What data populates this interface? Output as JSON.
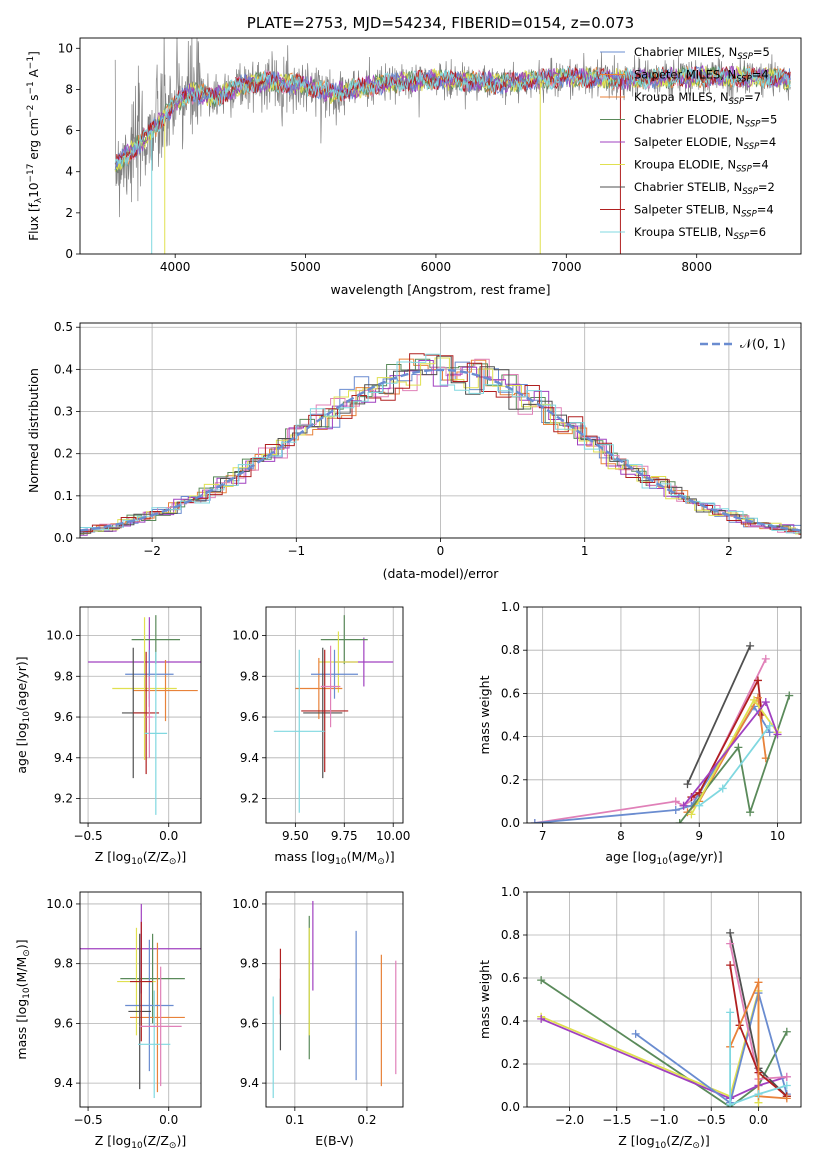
{
  "colors": {
    "c0": "#6A8CD0",
    "c1": "#E8823A",
    "c2": "#5A8A5A",
    "c3": "#E080B8",
    "c4": "#A040C0",
    "c5": "#E0E050",
    "c6": "#505050",
    "c7": "#B02020",
    "c8": "#80D8E0",
    "grid": "#b0b0b0",
    "spectrum": "#808080",
    "gauss": "#6A8CD0"
  },
  "chart_data": [
    {
      "id": "spectrum",
      "type": "line",
      "title": "PLATE=2753, MJD=54234, FIBERID=0154, z=0.073",
      "xlabel": "wavelength [Angstrom, rest frame]",
      "ylabel": "Flux [f",
      "ylabel_sub": "λ",
      "ylabel_rest": "10",
      "ylabel_sup": "−17",
      "ylabel_tail": " erg cm",
      "ylabel_sup2": "−2",
      "ylabel_tail2": " s",
      "ylabel_sup3": "−1",
      "ylabel_tail3": " A",
      "ylabel_sup4": "−1",
      "ylabel_end": "]",
      "xlim": [
        3270,
        8800
      ],
      "ylim": [
        0,
        10.5
      ],
      "xticks": [
        4000,
        5000,
        6000,
        7000,
        8000
      ],
      "yticks": [
        0,
        2,
        4,
        6,
        8,
        10
      ],
      "grid": false,
      "legend_position": "right",
      "legend": [
        {
          "label": "Chabrier MILES, N",
          "sub": "SSP",
          "tail": "=5",
          "color": "c0"
        },
        {
          "label": "Salpeter MILES, N",
          "sub": "SSP",
          "tail": "=4",
          "color": "c1"
        },
        {
          "label": "Kroupa MILES, N",
          "sub": "SSP",
          "tail": "=7",
          "color": "c1"
        },
        {
          "label": "Chabrier ELODIE, N",
          "sub": "SSP",
          "tail": "=5",
          "color": "c2"
        },
        {
          "label": "Salpeter ELODIE, N",
          "sub": "SSP",
          "tail": "=4",
          "color": "c4"
        },
        {
          "label": "Kroupa ELODIE, N",
          "sub": "SSP",
          "tail": "=4",
          "color": "c5"
        },
        {
          "label": "Chabrier STELIB, N",
          "sub": "SSP",
          "tail": "=2",
          "color": "c6"
        },
        {
          "label": "Salpeter STELIB, N",
          "sub": "SSP",
          "tail": "=4",
          "color": "c7"
        },
        {
          "label": "Kroupa STELIB, N",
          "sub": "SSP",
          "tail": "=6",
          "color": "c8"
        }
      ],
      "continuum_knots": [
        [
          3540,
          4.3
        ],
        [
          3700,
          5.2
        ],
        [
          3850,
          6.2
        ],
        [
          4000,
          7.3
        ],
        [
          4100,
          7.8
        ],
        [
          4200,
          7.8
        ],
        [
          4300,
          7.6
        ],
        [
          4500,
          8.2
        ],
        [
          4700,
          8.4
        ],
        [
          5000,
          8.2
        ],
        [
          5200,
          7.8
        ],
        [
          5500,
          8.2
        ],
        [
          6000,
          8.5
        ],
        [
          6300,
          8.4
        ],
        [
          6500,
          8.3
        ],
        [
          7000,
          8.6
        ],
        [
          7500,
          8.5
        ],
        [
          8000,
          8.6
        ],
        [
          8500,
          8.6
        ],
        [
          8700,
          8.5
        ]
      ],
      "dips": [
        {
          "x": 3820,
          "depth": 10.5,
          "color": "c8"
        },
        {
          "x": 3920,
          "depth": 10.5,
          "color": "c5"
        },
        {
          "x": 6800,
          "depth": 10.5,
          "color": "c5"
        },
        {
          "x": 7415,
          "depth": 10.5,
          "color": "c7"
        }
      ]
    },
    {
      "id": "residuals",
      "type": "histogram",
      "xlabel": "(data-model)/error",
      "ylabel": "Normed distribution",
      "xlim": [
        -2.5,
        2.5
      ],
      "ylim": [
        0,
        0.51
      ],
      "xticks": [
        -2,
        -1,
        0,
        1,
        2
      ],
      "yticks": [
        0.0,
        0.1,
        0.2,
        0.3,
        0.4,
        0.5
      ],
      "grid": true,
      "legend_position": "top-right",
      "legend": [
        {
          "label": "𝒩(0, 1)",
          "color": "gauss",
          "style": "dashed"
        }
      ],
      "bin_width": 0.1,
      "series_colors": [
        "c0",
        "c1",
        "c2",
        "c3",
        "c4",
        "c5",
        "c6",
        "c7",
        "c8"
      ]
    },
    {
      "id": "age-vs-z",
      "type": "scatter",
      "xlabel": "Z [log",
      "xlabel_sub": "10",
      "xlabel_tail": "(Z/Z",
      "xlabel_sub2": "⊙",
      "xlabel_end": ")]",
      "ylabel": "age  [log",
      "ylabel_sub": "10",
      "ylabel_tail": "(age/yr)]",
      "xlim": [
        -0.55,
        0.2
      ],
      "ylim": [
        9.08,
        10.14
      ],
      "xticks": [
        -0.5,
        0.0
      ],
      "yticks": [
        9.2,
        9.4,
        9.6,
        9.8,
        10.0
      ],
      "grid": true,
      "points": [
        {
          "x": -0.12,
          "y": 9.87,
          "xerr": 0.38,
          "yerr": 0.22,
          "color": "c4"
        },
        {
          "x": -0.08,
          "y": 9.98,
          "xerr": 0.15,
          "yerr": 0.12,
          "color": "c2"
        },
        {
          "x": -0.15,
          "y": 9.74,
          "xerr": 0.2,
          "yerr": 0.35,
          "color": "c5"
        },
        {
          "x": -0.02,
          "y": 9.73,
          "xerr": 0.2,
          "yerr": 0.15,
          "color": "c1"
        },
        {
          "x": -0.12,
          "y": 9.81,
          "xerr": 0.15,
          "yerr": 0.12,
          "color": "c0"
        },
        {
          "x": -0.22,
          "y": 9.62,
          "xerr": 0.07,
          "yerr": 0.32,
          "color": "c6"
        },
        {
          "x": -0.14,
          "y": 9.62,
          "xerr": 0.08,
          "yerr": 0.3,
          "color": "c7"
        },
        {
          "x": -0.08,
          "y": 9.52,
          "xerr": 0.07,
          "yerr": 0.4,
          "color": "c8"
        },
        {
          "x": -0.12,
          "y": 9.6,
          "xerr": 0.02,
          "yerr": 0.2,
          "color": "c3"
        }
      ]
    },
    {
      "id": "age-vs-mass",
      "type": "scatter",
      "xlabel": "mass [log",
      "xlabel_sub": "10",
      "xlabel_tail": "(M/M",
      "xlabel_sub2": "⊙",
      "xlabel_end": ")]",
      "xlim": [
        9.35,
        10.05
      ],
      "ylim": [
        9.08,
        10.14
      ],
      "xticks": [
        9.5,
        9.75,
        10.0
      ],
      "yticks": [
        9.2,
        9.4,
        9.6,
        9.8,
        10.0
      ],
      "grid": true,
      "points": [
        {
          "x": 9.85,
          "y": 9.87,
          "xerr": 0.15,
          "yerr": 0.12,
          "color": "c4"
        },
        {
          "x": 9.75,
          "y": 9.98,
          "xerr": 0.12,
          "yerr": 0.12,
          "color": "c2"
        },
        {
          "x": 9.72,
          "y": 9.87,
          "xerr": 0.1,
          "yerr": 0.15,
          "color": "c5"
        },
        {
          "x": 9.62,
          "y": 9.74,
          "xerr": 0.12,
          "yerr": 0.15,
          "color": "c1"
        },
        {
          "x": 9.7,
          "y": 9.81,
          "xerr": 0.12,
          "yerr": 0.12,
          "color": "c0"
        },
        {
          "x": 9.64,
          "y": 9.62,
          "xerr": 0.1,
          "yerr": 0.32,
          "color": "c6"
        },
        {
          "x": 9.65,
          "y": 9.63,
          "xerr": 0.12,
          "yerr": 0.3,
          "color": "c7"
        },
        {
          "x": 9.52,
          "y": 9.53,
          "xerr": 0.13,
          "yerr": 0.4,
          "color": "c8"
        },
        {
          "x": 9.68,
          "y": 9.75,
          "xerr": 0.05,
          "yerr": 0.2,
          "color": "c3"
        }
      ]
    },
    {
      "id": "mass-weight-vs-age",
      "type": "line",
      "xlabel": "age  [log",
      "xlabel_sub": "10",
      "xlabel_tail": "(age/yr)]",
      "ylabel": "mass weight",
      "xlim": [
        6.8,
        10.3
      ],
      "ylim": [
        0,
        1.0
      ],
      "xticks": [
        7,
        8,
        9,
        10
      ],
      "yticks": [
        0.0,
        0.2,
        0.4,
        0.6,
        0.8,
        1.0
      ],
      "grid": true,
      "series": [
        {
          "color": "c3",
          "points": [
            [
              6.9,
              0.0
            ],
            [
              8.7,
              0.1
            ],
            [
              8.8,
              0.08
            ],
            [
              9.0,
              0.13
            ],
            [
              9.85,
              0.76
            ]
          ]
        },
        {
          "color": "c0",
          "points": [
            [
              6.9,
              0.0
            ],
            [
              8.7,
              0.06
            ],
            [
              8.9,
              0.08
            ],
            [
              9.7,
              0.54
            ],
            [
              9.9,
              0.42
            ]
          ]
        },
        {
          "color": "c6",
          "points": [
            [
              8.85,
              0.18
            ],
            [
              9.65,
              0.82
            ]
          ]
        },
        {
          "color": "c7",
          "points": [
            [
              8.9,
              0.12
            ],
            [
              9.0,
              0.14
            ],
            [
              9.75,
              0.66
            ],
            [
              9.8,
              0.5
            ]
          ]
        },
        {
          "color": "c1",
          "points": [
            [
              8.85,
              0.05
            ],
            [
              9.0,
              0.1
            ],
            [
              9.75,
              0.58
            ],
            [
              9.85,
              0.3
            ]
          ]
        },
        {
          "color": "c2",
          "points": [
            [
              8.75,
              0.0
            ],
            [
              9.5,
              0.35
            ],
            [
              9.65,
              0.05
            ],
            [
              10.15,
              0.59
            ]
          ]
        },
        {
          "color": "c5",
          "points": [
            [
              8.9,
              0.04
            ],
            [
              9.7,
              0.57
            ],
            [
              10.0,
              0.42
            ]
          ]
        },
        {
          "color": "c4",
          "points": [
            [
              8.8,
              0.08
            ],
            [
              9.85,
              0.56
            ],
            [
              10.0,
              0.41
            ]
          ]
        },
        {
          "color": "c8",
          "points": [
            [
              9.0,
              0.08
            ],
            [
              9.3,
              0.16
            ],
            [
              9.9,
              0.45
            ]
          ]
        }
      ]
    },
    {
      "id": "mass-vs-z",
      "type": "scatter",
      "xlabel": "Z [log",
      "xlabel_sub": "10",
      "xlabel_tail": "(Z/Z",
      "xlabel_sub2": "⊙",
      "xlabel_end": ")]",
      "ylabel": "mass [log",
      "ylabel_sub": "10",
      "ylabel_tail": "(M/M",
      "ylabel_sub2": "⊙",
      "ylabel_end": ")]",
      "xlim": [
        -0.55,
        0.2
      ],
      "ylim": [
        9.32,
        10.04
      ],
      "xticks": [
        -0.5,
        0.0
      ],
      "yticks": [
        9.4,
        9.6,
        9.8,
        10.0
      ],
      "grid": true,
      "points": [
        {
          "x": -0.17,
          "y": 9.85,
          "xerr": 0.38,
          "yerr": 0.15,
          "color": "c4"
        },
        {
          "x": -0.1,
          "y": 9.75,
          "xerr": 0.2,
          "yerr": 0.15,
          "color": "c2"
        },
        {
          "x": -0.2,
          "y": 9.74,
          "xerr": 0.12,
          "yerr": 0.18,
          "color": "c5"
        },
        {
          "x": -0.07,
          "y": 9.62,
          "xerr": 0.17,
          "yerr": 0.25,
          "color": "c1"
        },
        {
          "x": -0.12,
          "y": 9.66,
          "xerr": 0.15,
          "yerr": 0.22,
          "color": "c0"
        },
        {
          "x": -0.18,
          "y": 9.64,
          "xerr": 0.07,
          "yerr": 0.26,
          "color": "c6"
        },
        {
          "x": -0.17,
          "y": 9.74,
          "xerr": 0.07,
          "yerr": 0.2,
          "color": "c7"
        },
        {
          "x": -0.09,
          "y": 9.53,
          "xerr": 0.1,
          "yerr": 0.18,
          "color": "c8"
        },
        {
          "x": -0.05,
          "y": 9.59,
          "xerr": 0.13,
          "yerr": 0.2,
          "color": "c3"
        }
      ]
    },
    {
      "id": "mass-vs-ebv",
      "type": "scatter",
      "xlabel": "E(B-V)",
      "xlim": [
        0.06,
        0.25
      ],
      "ylim": [
        9.32,
        10.04
      ],
      "xticks": [
        0.1,
        0.2
      ],
      "yticks": [
        9.4,
        9.6,
        9.8,
        10.0
      ],
      "grid": true,
      "points": [
        {
          "x": 0.125,
          "y": 9.86,
          "yerr": 0.15,
          "color": "c4"
        },
        {
          "x": 0.12,
          "y": 9.72,
          "yerr": 0.24,
          "color": "c2"
        },
        {
          "x": 0.12,
          "y": 9.74,
          "yerr": 0.18,
          "color": "c5"
        },
        {
          "x": 0.22,
          "y": 9.61,
          "yerr": 0.22,
          "color": "c1"
        },
        {
          "x": 0.185,
          "y": 9.66,
          "yerr": 0.25,
          "color": "c0"
        },
        {
          "x": 0.08,
          "y": 9.63,
          "yerr": 0.12,
          "color": "c6"
        },
        {
          "x": 0.08,
          "y": 9.74,
          "yerr": 0.11,
          "color": "c7"
        },
        {
          "x": 0.07,
          "y": 9.52,
          "yerr": 0.17,
          "color": "c8"
        },
        {
          "x": 0.24,
          "y": 9.62,
          "yerr": 0.19,
          "color": "c3"
        }
      ]
    },
    {
      "id": "mass-weight-vs-z",
      "type": "line",
      "xlabel": "Z [log",
      "xlabel_sub": "10",
      "xlabel_tail": "(Z/Z",
      "xlabel_sub2": "⊙",
      "xlabel_end": ")]",
      "ylabel": "mass weight",
      "xlim": [
        -2.45,
        0.45
      ],
      "ylim": [
        0,
        1.0
      ],
      "xticks": [
        -2.0,
        -1.5,
        -1.0,
        -0.5,
        0.0
      ],
      "yticks": [
        0.0,
        0.2,
        0.4,
        0.6,
        0.8,
        1.0
      ],
      "grid": true,
      "series": [
        {
          "color": "c2",
          "points": [
            [
              -2.3,
              0.59
            ],
            [
              -0.3,
              0.0
            ],
            [
              0.0,
              0.1
            ],
            [
              0.3,
              0.35
            ]
          ]
        },
        {
          "color": "c5",
          "points": [
            [
              -2.3,
              0.42
            ],
            [
              -0.3,
              0.05
            ],
            [
              0.0,
              0.54
            ],
            [
              0.0,
              0.02
            ]
          ]
        },
        {
          "color": "c4",
          "points": [
            [
              -2.3,
              0.41
            ],
            [
              -0.3,
              0.04
            ],
            [
              0.0,
              0.1
            ],
            [
              0.3,
              0.14
            ]
          ]
        },
        {
          "color": "c0",
          "points": [
            [
              -1.3,
              0.34
            ],
            [
              -0.3,
              0.02
            ],
            [
              0.0,
              0.53
            ],
            [
              0.3,
              0.06
            ]
          ]
        },
        {
          "color": "c6",
          "points": [
            [
              -0.3,
              0.81
            ],
            [
              0.0,
              0.18
            ],
            [
              0.3,
              0.05
            ]
          ]
        },
        {
          "color": "c3",
          "points": [
            [
              -0.3,
              0.76
            ],
            [
              0.0,
              0.13
            ],
            [
              0.3,
              0.14
            ]
          ]
        },
        {
          "color": "c7",
          "points": [
            [
              -0.3,
              0.66
            ],
            [
              -0.2,
              0.38
            ],
            [
              0.0,
              0.16
            ],
            [
              0.3,
              0.05
            ]
          ]
        },
        {
          "color": "c1",
          "points": [
            [
              -0.3,
              0.28
            ],
            [
              0.0,
              0.58
            ],
            [
              0.0,
              0.05
            ],
            [
              0.3,
              0.04
            ]
          ]
        },
        {
          "color": "c8",
          "points": [
            [
              -0.3,
              0.44
            ],
            [
              -0.3,
              0.01
            ],
            [
              0.0,
              0.06
            ],
            [
              0.3,
              0.1
            ]
          ]
        }
      ]
    }
  ]
}
